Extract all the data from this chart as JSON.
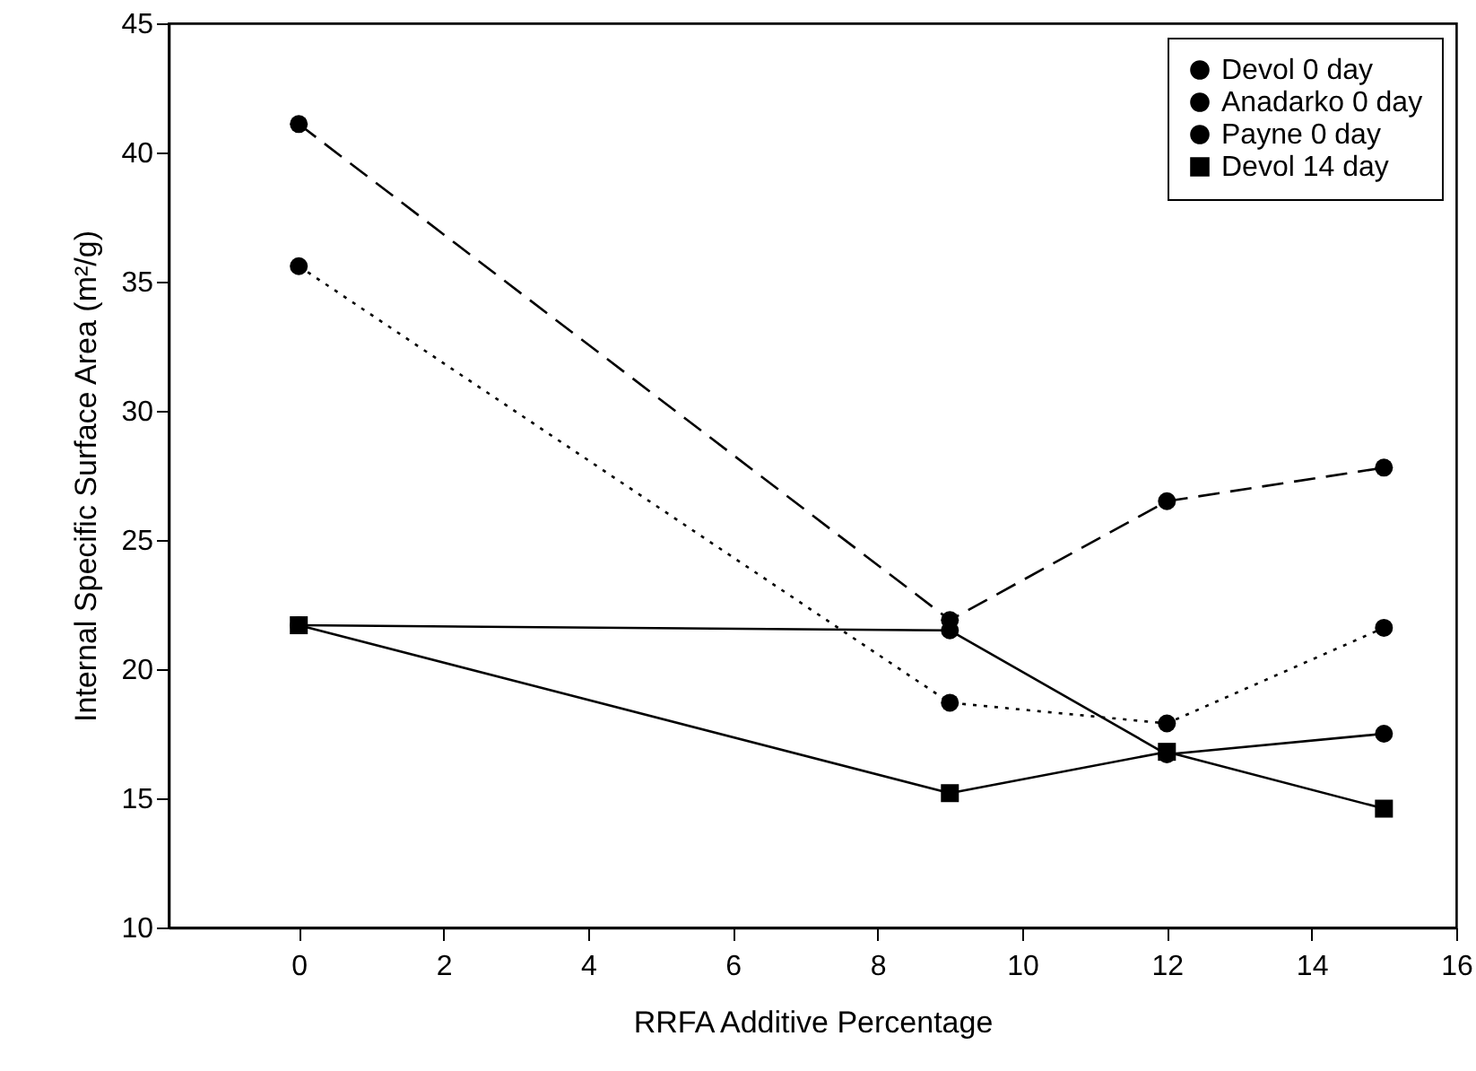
{
  "chart_data": {
    "type": "line",
    "xlabel": "RRFA Additive Percentage",
    "ylabel": "Internal Specific Surface Area (m²/g)",
    "x": [
      0,
      9,
      12,
      15
    ],
    "series": [
      {
        "name": "Devol 0 day",
        "color": "#000000",
        "marker": "circle",
        "line_style": "solid",
        "values": [
          21.7,
          21.5,
          16.7,
          17.5
        ]
      },
      {
        "name": "Anadarko 0 day",
        "color": "#000000",
        "marker": "circle",
        "line_style": "dotted",
        "values": [
          35.6,
          18.7,
          17.9,
          21.6
        ]
      },
      {
        "name": "Payne 0 day",
        "color": "#000000",
        "marker": "circle",
        "line_style": "dashed",
        "values": [
          41.1,
          21.9,
          26.5,
          27.8
        ]
      },
      {
        "name": "Devol 14 day",
        "color": "#000000",
        "marker": "square",
        "line_style": "solid",
        "values": [
          21.7,
          15.2,
          16.8,
          14.6
        ]
      }
    ],
    "xlim": [
      -1.8,
      16
    ],
    "xticks": [
      0,
      2,
      4,
      6,
      8,
      10,
      12,
      14,
      16
    ],
    "ylim": [
      10,
      45
    ],
    "yticks": [
      10,
      15,
      20,
      25,
      30,
      35,
      40,
      45
    ],
    "legend": "top right",
    "grid": false
  }
}
